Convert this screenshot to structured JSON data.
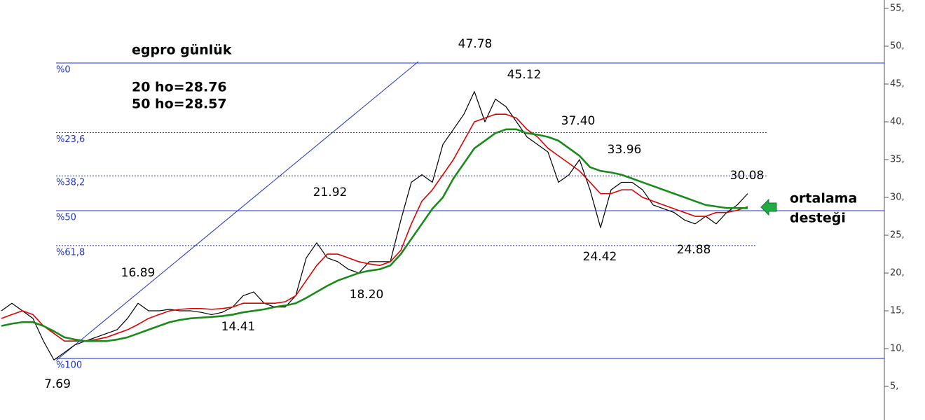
{
  "chart_data": {
    "type": "line",
    "ylim": [
      0.56,
      56.11
    ],
    "yticks": [
      {
        "value": 5,
        "label": "5,"
      },
      {
        "value": 10,
        "label": "10,"
      },
      {
        "value": 15,
        "label": "15,"
      },
      {
        "value": 20,
        "label": "20,"
      },
      {
        "value": 25,
        "label": "25,"
      },
      {
        "value": 30,
        "label": "30,"
      },
      {
        "value": 35,
        "label": "35,"
      },
      {
        "value": 40,
        "label": "40,"
      },
      {
        "value": 45,
        "label": "45,"
      },
      {
        "value": 50,
        "label": "50,"
      },
      {
        "value": 55,
        "label": "55,"
      }
    ],
    "series": [
      {
        "color": "#000000",
        "values": [
          15,
          16,
          15,
          14,
          11,
          8.5,
          9.5,
          10.5,
          11,
          11.5,
          12,
          12.5,
          14,
          16,
          15,
          15,
          15.2,
          15,
          15,
          14.8,
          14.5,
          14.8,
          15.5,
          17,
          17.5,
          16,
          15.5,
          15.5,
          17,
          22,
          24,
          22,
          21.5,
          20.5,
          20,
          21.5,
          21.5,
          21.5,
          27,
          32,
          33,
          32,
          37,
          39,
          41,
          44,
          40,
          43,
          42,
          40,
          38,
          37,
          36,
          32,
          33,
          35,
          31,
          26,
          31,
          32,
          32,
          31,
          29,
          28.5,
          28,
          27,
          26.5,
          27.5,
          26.5,
          28,
          29,
          30.5
        ]
      },
      {
        "color": "#e00000",
        "values": [
          14,
          14.5,
          15,
          14.5,
          13,
          12,
          11,
          11,
          11,
          11.2,
          11.5,
          12,
          12.5,
          13.2,
          14,
          14.5,
          15,
          15.2,
          15.3,
          15.3,
          15.2,
          15.3,
          15.5,
          16,
          16,
          16,
          16,
          16.2,
          17,
          19,
          21,
          22.5,
          22.5,
          22,
          21.5,
          21.2,
          21,
          21.5,
          23,
          26.5,
          29.5,
          31,
          33,
          35,
          37.5,
          40,
          40.5,
          41,
          41,
          40.5,
          39,
          38,
          36.5,
          35.5,
          34.5,
          33.5,
          32,
          30.5,
          30.5,
          31,
          31,
          30,
          29.5,
          29,
          28.5,
          28,
          27.5,
          27.5,
          28,
          28,
          28.3,
          28.76
        ]
      },
      {
        "color": "#1a8a1a",
        "values": [
          13,
          13.3,
          13.5,
          13.5,
          13,
          12.3,
          11.5,
          11.2,
          11,
          11,
          11,
          11.2,
          11.5,
          12,
          12.5,
          13,
          13.5,
          13.8,
          14,
          14.1,
          14.2,
          14.3,
          14.5,
          14.8,
          15,
          15.2,
          15.5,
          15.7,
          16,
          16.7,
          17.5,
          18.3,
          19,
          19.5,
          20,
          20.3,
          20.5,
          21,
          22.5,
          24.5,
          26.5,
          28.5,
          30,
          32.5,
          34.5,
          36.5,
          37.5,
          38.5,
          39,
          39,
          38.5,
          38.3,
          38,
          37.5,
          36.5,
          35.5,
          34,
          33.5,
          33.3,
          33,
          32.5,
          32,
          31.5,
          31,
          30.5,
          30,
          29.5,
          29,
          28.8,
          28.6,
          28.6,
          28.57
        ]
      }
    ],
    "fib_levels": [
      {
        "value": 47.78,
        "label": "%0"
      },
      {
        "value": 38.56,
        "label": "%23,6"
      },
      {
        "value": 32.85,
        "label": "%38,2"
      },
      {
        "value": 28.24,
        "label": "%50"
      },
      {
        "value": 23.63,
        "label": "%61,8"
      },
      {
        "value": 8.7,
        "label": "%100"
      }
    ],
    "title": "egpro günlük",
    "notes": [
      "20 ho=28.76",
      "50 ho=28.57"
    ],
    "callout": [
      "ortalama",
      "desteği"
    ],
    "price_labels": [
      "47.78",
      "45.12",
      "37.40",
      "33.96",
      "30.08",
      "24.42",
      "24.88",
      "21.92",
      "18.20",
      "16.89",
      "14.41",
      "7.69"
    ]
  }
}
